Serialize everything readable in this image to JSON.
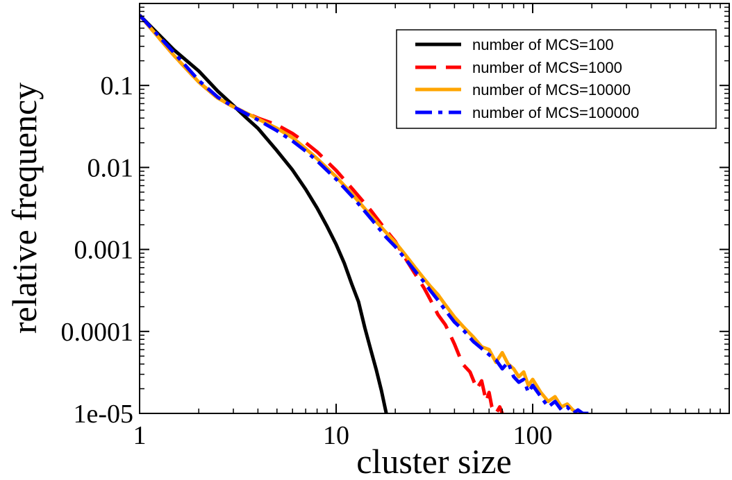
{
  "chart_data": {
    "type": "line",
    "xscale": "log",
    "yscale": "log",
    "xlabel": "cluster size",
    "ylabel": "relative frequency",
    "xlim": [
      1,
      1000
    ],
    "ylim": [
      1e-05,
      1
    ],
    "grid": false,
    "legend_position": "top-right",
    "x_ticks": [
      {
        "value": 1,
        "label": "1"
      },
      {
        "value": 10,
        "label": "10"
      },
      {
        "value": 100,
        "label": "100"
      }
    ],
    "y_ticks": [
      {
        "value": 1e-05,
        "label": "1e-05"
      },
      {
        "value": 0.0001,
        "label": "0.0001"
      },
      {
        "value": 0.001,
        "label": "0.001"
      },
      {
        "value": 0.01,
        "label": "0.01"
      },
      {
        "value": 0.1,
        "label": "0.1"
      }
    ],
    "series": [
      {
        "name": "number of MCS=100",
        "color": "#000000",
        "dash": "solid",
        "x": [
          1,
          1.5,
          2,
          2.5,
          3,
          3.5,
          4,
          5,
          6,
          7,
          8,
          9,
          10,
          11,
          12,
          13,
          14,
          15,
          16,
          17,
          18
        ],
        "y": [
          0.72,
          0.27,
          0.15,
          0.085,
          0.057,
          0.04,
          0.03,
          0.016,
          0.0093,
          0.0054,
          0.0032,
          0.0019,
          0.00115,
          0.00068,
          0.00038,
          0.00023,
          0.00011,
          6e-05,
          3.4e-05,
          1.9e-05,
          1e-05
        ]
      },
      {
        "name": "number of MCS=1000",
        "color": "#ff0000",
        "dash": "long-dash",
        "x": [
          1,
          1.5,
          2,
          2.5,
          3,
          3.5,
          4,
          5,
          6,
          7,
          8,
          10,
          12,
          15,
          18,
          20,
          22,
          25,
          28,
          30,
          33,
          36,
          40,
          44,
          48,
          52,
          55,
          58,
          60,
          62,
          65,
          68,
          70
        ],
        "y": [
          0.72,
          0.23,
          0.11,
          0.07,
          0.055,
          0.046,
          0.04,
          0.033,
          0.026,
          0.02,
          0.0155,
          0.0092,
          0.0056,
          0.003,
          0.0017,
          0.00125,
          0.00085,
          0.00052,
          0.00034,
          0.00025,
          0.00016,
          0.00012,
          7e-05,
          4e-05,
          3.2e-05,
          2e-05,
          2.5e-05,
          1.4e-05,
          1.8e-05,
          1.2e-05,
          1e-05,
          1.2e-05,
          1e-05
        ]
      },
      {
        "name": "number of MCS=10000",
        "color": "#ffa500",
        "dash": "solid",
        "x": [
          1,
          1.5,
          2,
          2.5,
          3,
          3.5,
          4,
          5,
          6,
          7,
          8,
          10,
          12,
          15,
          18,
          20,
          22,
          25,
          28,
          30,
          33,
          36,
          40,
          45,
          50,
          55,
          60,
          65,
          70,
          75,
          80,
          85,
          90,
          95,
          100,
          110,
          120,
          130,
          140,
          150,
          160,
          170
        ],
        "y": [
          0.72,
          0.23,
          0.11,
          0.07,
          0.055,
          0.046,
          0.039,
          0.03,
          0.023,
          0.017,
          0.0128,
          0.0077,
          0.0048,
          0.0026,
          0.0016,
          0.00122,
          0.00092,
          0.00062,
          0.00044,
          0.00036,
          0.00028,
          0.00021,
          0.00015,
          0.00011,
          8.5e-05,
          6.5e-05,
          6e-05,
          4.2e-05,
          5.5e-05,
          4e-05,
          3.5e-05,
          2.8e-05,
          3.2e-05,
          2.2e-05,
          2.6e-05,
          1.8e-05,
          1.4e-05,
          1.6e-05,
          1.2e-05,
          1.3e-05,
          1.1e-05,
          1e-05
        ]
      },
      {
        "name": "number of MCS=100000",
        "color": "#0000ff",
        "dash": "dash-dot",
        "x": [
          1,
          1.5,
          2,
          2.5,
          3,
          3.5,
          4,
          5,
          6,
          7,
          8,
          10,
          12,
          15,
          18,
          20,
          22,
          25,
          28,
          30,
          33,
          36,
          40,
          45,
          50,
          55,
          60,
          65,
          70,
          75,
          80,
          85,
          90,
          95,
          100,
          110,
          120,
          130,
          140,
          150,
          160,
          170,
          180,
          190,
          200
        ],
        "y": [
          0.72,
          0.25,
          0.115,
          0.072,
          0.055,
          0.045,
          0.038,
          0.028,
          0.021,
          0.0158,
          0.012,
          0.0072,
          0.0045,
          0.0024,
          0.0014,
          0.00108,
          0.00082,
          0.00056,
          0.0004,
          0.00032,
          0.00024,
          0.00018,
          0.00013,
          0.0001,
          7.5e-05,
          6.2e-05,
          5.2e-05,
          4.5e-05,
          3.5e-05,
          4.2e-05,
          2.8e-05,
          2.4e-05,
          2.6e-05,
          1.8e-05,
          2.2e-05,
          1.6e-05,
          1.2e-05,
          1.4e-05,
          1.1e-05,
          1.2e-05,
          1e-05,
          1.1e-05,
          1e-05,
          1e-05,
          1e-05
        ]
      }
    ]
  }
}
